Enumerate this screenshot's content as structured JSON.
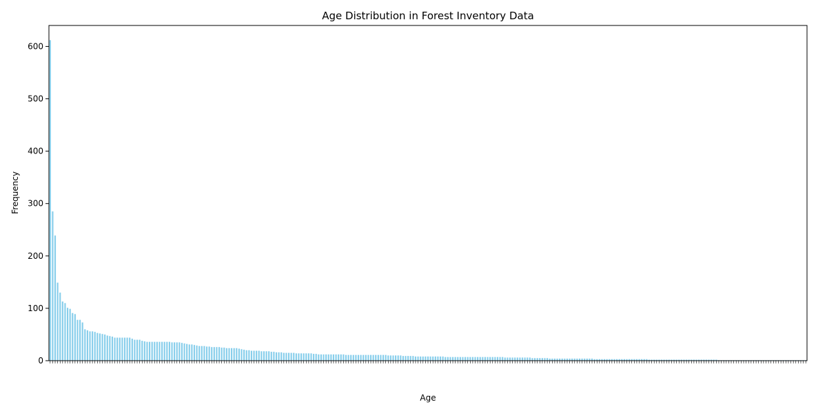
{
  "chart_data": {
    "type": "bar",
    "title": "Age Distribution in Forest Inventory Data",
    "xlabel": "Age",
    "ylabel": "Frequency",
    "ylim": [
      0,
      640
    ],
    "yticks": [
      0,
      100,
      200,
      300,
      400,
      500,
      600
    ],
    "grid": false,
    "bar_color": "#87ceeb",
    "values": [
      612,
      285,
      239,
      149,
      130,
      113,
      110,
      101,
      99,
      91,
      89,
      78,
      78,
      73,
      60,
      58,
      56,
      56,
      55,
      53,
      52,
      51,
      50,
      48,
      47,
      46,
      44,
      44,
      44,
      44,
      44,
      44,
      44,
      42,
      40,
      40,
      40,
      38,
      37,
      36,
      36,
      36,
      36,
      36,
      36,
      36,
      36,
      36,
      36,
      35,
      35,
      35,
      35,
      34,
      33,
      32,
      31,
      31,
      30,
      29,
      28,
      28,
      28,
      27,
      27,
      26,
      26,
      26,
      26,
      25,
      25,
      24,
      24,
      24,
      24,
      24,
      23,
      22,
      21,
      20,
      20,
      19,
      19,
      19,
      19,
      18,
      18,
      18,
      18,
      17,
      17,
      16,
      16,
      16,
      15,
      15,
      15,
      15,
      15,
      14,
      14,
      14,
      14,
      14,
      14,
      14,
      13,
      13,
      12,
      12,
      12,
      12,
      12,
      12,
      12,
      12,
      12,
      12,
      12,
      11,
      11,
      11,
      11,
      11,
      11,
      11,
      11,
      11,
      11,
      11,
      11,
      11,
      11,
      11,
      11,
      11,
      10,
      10,
      10,
      10,
      10,
      10,
      9,
      9,
      9,
      9,
      9,
      8,
      8,
      8,
      8,
      8,
      8,
      8,
      8,
      8,
      8,
      8,
      8,
      7,
      7,
      7,
      7,
      7,
      7,
      7,
      7,
      7,
      7,
      7,
      7,
      7,
      7,
      7,
      7,
      7,
      7,
      7,
      7,
      7,
      7,
      7,
      7,
      6,
      6,
      6,
      6,
      6,
      6,
      6,
      6,
      6,
      6,
      6,
      5,
      5,
      5,
      5,
      5,
      5,
      5,
      4,
      4,
      4,
      4,
      4,
      4,
      4,
      4,
      4,
      4,
      4,
      4,
      4,
      4,
      4,
      4,
      4,
      4,
      3,
      3,
      3,
      3,
      3,
      3,
      3,
      3,
      3,
      3,
      3,
      3,
      3,
      3,
      3,
      3,
      3,
      3,
      3,
      3,
      3,
      3,
      2,
      2,
      2,
      2,
      2,
      2,
      2,
      2,
      2,
      2,
      2,
      2,
      2,
      2,
      2,
      2,
      2,
      2,
      2,
      2,
      2,
      2,
      2,
      2,
      2,
      2,
      2,
      2,
      1,
      1,
      1,
      1,
      1,
      1,
      1,
      1,
      1,
      1,
      1,
      1,
      1,
      1,
      1,
      1,
      1,
      1,
      1,
      1,
      1,
      1,
      1,
      1,
      1,
      1,
      1,
      1,
      1,
      1,
      1,
      1,
      1,
      1,
      1,
      1
    ]
  }
}
